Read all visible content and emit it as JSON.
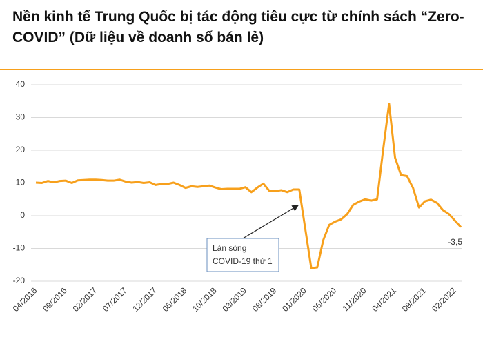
{
  "chart_data": {
    "type": "line",
    "title": "Nền kinh tế Trung Quốc bị tác động tiêu cực từ chính sách “Zero-COVID” (Dữ liệu về doanh số bán lẻ)",
    "categories": [
      "04/2016",
      null,
      null,
      null,
      null,
      "09/2016",
      null,
      null,
      null,
      null,
      "02/2017",
      null,
      null,
      null,
      null,
      "07/2017",
      null,
      null,
      null,
      null,
      "12/2017",
      null,
      null,
      null,
      null,
      "05/2018",
      null,
      null,
      null,
      null,
      "10/2018",
      null,
      null,
      null,
      null,
      "03/2019",
      null,
      null,
      null,
      null,
      "08/2019",
      null,
      null,
      null,
      null,
      "01/2020",
      null,
      null,
      null,
      null,
      "06/2020",
      null,
      null,
      null,
      null,
      "11/2020",
      null,
      null,
      null,
      null,
      "04/2021",
      null,
      null,
      null,
      null,
      "09/2021",
      null,
      null,
      null,
      null,
      "02/2022",
      null
    ],
    "series": [
      {
        "color": "#f7a01c",
        "values": [
          10.1,
          10.0,
          10.6,
          10.2,
          10.6,
          10.7,
          10.0,
          10.8,
          10.9,
          11.0,
          11.0,
          10.9,
          10.7,
          10.7,
          11.0,
          10.4,
          10.1,
          10.3,
          10.0,
          10.2,
          9.4,
          9.7,
          9.7,
          10.1,
          9.4,
          8.5,
          9.0,
          8.8,
          9.0,
          9.2,
          8.6,
          8.1,
          8.2,
          8.2,
          8.2,
          8.7,
          7.2,
          8.6,
          9.8,
          7.6,
          7.5,
          7.8,
          7.2,
          8.0,
          8.0,
          -4,
          -16,
          -15.8,
          -7.5,
          -2.8,
          -1.8,
          -1.1,
          0.5,
          3.3,
          4.3,
          5.0,
          4.6,
          5,
          20,
          34.2,
          17.7,
          12.4,
          12.1,
          8.5,
          2.5,
          4.4,
          4.9,
          3.9,
          1.7,
          0.5,
          -1.5,
          -3.5
        ],
        "value_labels": [
          null,
          null,
          null,
          null,
          null,
          null,
          null,
          null,
          null,
          null,
          null,
          null,
          null,
          null,
          null,
          null,
          null,
          null,
          null,
          null,
          null,
          null,
          null,
          null,
          null,
          null,
          null,
          null,
          null,
          null,
          null,
          null,
          null,
          null,
          null,
          null,
          null,
          null,
          null,
          null,
          null,
          null,
          null,
          null,
          null,
          null,
          null,
          null,
          null,
          null,
          null,
          null,
          null,
          null,
          null,
          null,
          null,
          null,
          null,
          null,
          null,
          null,
          null,
          null,
          null,
          null,
          null,
          null,
          null,
          null,
          null,
          "-3,5"
        ]
      }
    ],
    "ylim": [
      -20,
      40
    ],
    "yticks": [
      -20,
      -10,
      0,
      10,
      20,
      30,
      40
    ],
    "grid": true,
    "annotation": [
      "Làn sóng",
      "COVID-19 thứ 1"
    ]
  }
}
